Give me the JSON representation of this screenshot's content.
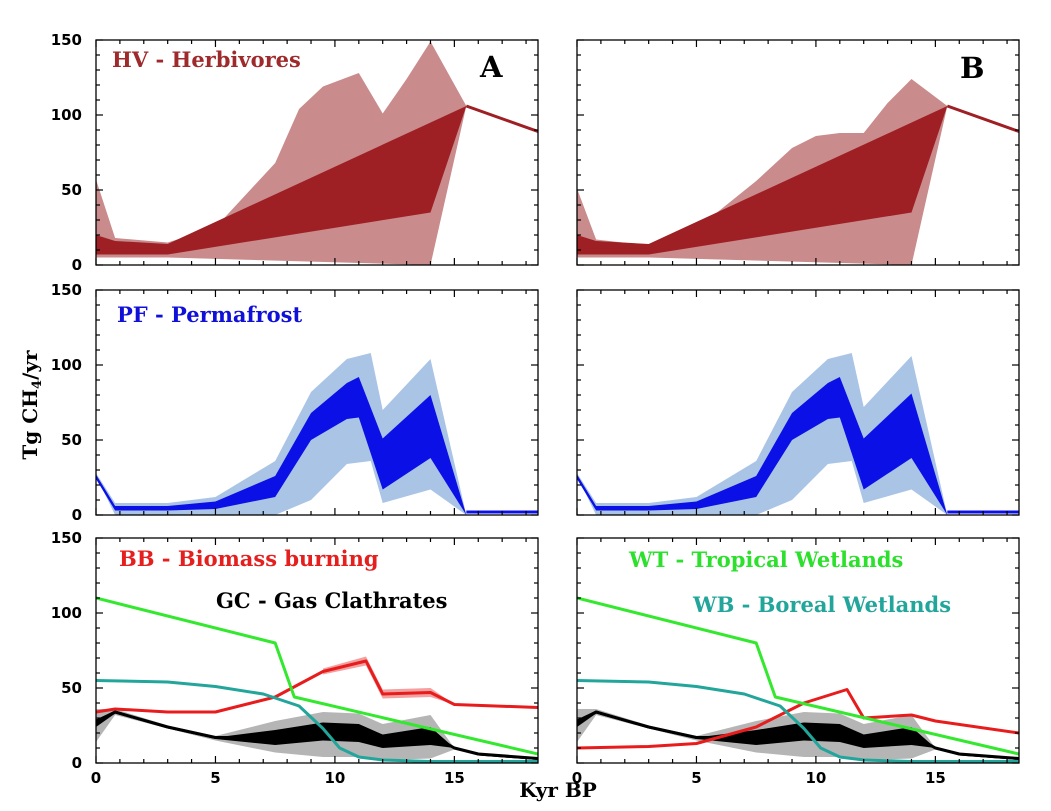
{
  "figure": {
    "ylabel_main": "Tg CH",
    "ylabel_sub": "4",
    "ylabel_end": "/yr",
    "xlabel": "Kyr BP"
  },
  "colors": {
    "hv_dark": "#9e1f24",
    "hv_light": "#c98b8c",
    "pf_dark": "#0a10e6",
    "pf_light": "#aac4e6",
    "bb": "#e81c1c",
    "bb_band": "#f2a0a0",
    "gc": "#000000",
    "gc_band": "#b5b5b5",
    "wt": "#33e82e",
    "wb": "#22a59a",
    "hv_text": "#9e2a2b",
    "pf_text": "#1010d8",
    "bb_text": "#e51e1e",
    "gc_text": "#000000",
    "wt_text": "#2ee02e",
    "wb_text": "#22a59a"
  },
  "chart_data": [
    {
      "id": "hv_A",
      "type": "area",
      "panel_letter": "A",
      "title": "HV - Herbivores",
      "xlim": [
        0,
        18.5
      ],
      "ylim": [
        0,
        150
      ],
      "xticks": [
        "0",
        "5",
        "10",
        "15"
      ],
      "yticks": [
        "0",
        "50",
        "100",
        "150"
      ],
      "series": [
        {
          "name": "outer_upper",
          "x": [
            0,
            0.8,
            3,
            5,
            7.5,
            8.5,
            9.5,
            11,
            12,
            13,
            14,
            15.5
          ],
          "y": [
            57,
            18,
            15,
            25,
            68,
            104,
            119,
            128,
            101,
            124,
            149,
            106
          ]
        },
        {
          "name": "outer_lower",
          "x": [
            0,
            0.8,
            3,
            14,
            15.5
          ],
          "y": [
            5,
            5,
            5,
            0,
            106
          ]
        },
        {
          "name": "inner_upper",
          "x": [
            0,
            0.8,
            3,
            15.5
          ],
          "y": [
            20,
            16,
            14,
            106
          ]
        },
        {
          "name": "inner_lower",
          "x": [
            0,
            0.8,
            3,
            14,
            15.5
          ],
          "y": [
            7,
            7,
            7,
            35,
            106
          ]
        },
        {
          "name": "mean",
          "x": [
            15.5,
            18.5
          ],
          "y": [
            106,
            89
          ]
        }
      ]
    },
    {
      "id": "hv_B",
      "type": "area",
      "panel_letter": "B",
      "xlim": [
        0,
        18.5
      ],
      "ylim": [
        0,
        150
      ],
      "xticks": [
        "0",
        "5",
        "10",
        "15"
      ],
      "yticks": [],
      "series": [
        {
          "name": "outer_upper",
          "x": [
            0,
            0.8,
            3,
            5,
            7.5,
            9,
            10,
            11,
            12,
            13,
            14,
            15.5
          ],
          "y": [
            51,
            17,
            13,
            24,
            56,
            78,
            86,
            88,
            88,
            108,
            124,
            106
          ]
        },
        {
          "name": "outer_lower",
          "x": [
            0,
            0.8,
            3,
            14,
            15.5
          ],
          "y": [
            5,
            5,
            5,
            0,
            106
          ]
        },
        {
          "name": "inner_upper",
          "x": [
            0,
            0.8,
            3,
            15.5
          ],
          "y": [
            20,
            16,
            14,
            106
          ]
        },
        {
          "name": "inner_lower",
          "x": [
            0,
            0.8,
            3,
            14,
            15.5
          ],
          "y": [
            7,
            7,
            7,
            35,
            106
          ]
        },
        {
          "name": "mean",
          "x": [
            15.5,
            18.5
          ],
          "y": [
            106,
            89
          ]
        }
      ]
    },
    {
      "id": "pf_A",
      "type": "area",
      "title": "PF - Permafrost",
      "xlim": [
        0,
        18.5
      ],
      "ylim": [
        0,
        150
      ],
      "xticks": [
        "0",
        "5",
        "10",
        "15"
      ],
      "yticks": [
        "0",
        "50",
        "100",
        "150"
      ],
      "series": [
        {
          "name": "outer_upper",
          "x": [
            0,
            0.8,
            3,
            5,
            7.5,
            9,
            10.5,
            11.5,
            12,
            14,
            15.5
          ],
          "y": [
            28,
            8,
            8,
            12,
            36,
            82,
            104,
            108,
            70,
            104,
            0
          ]
        },
        {
          "name": "outer_lower",
          "x": [
            0,
            0.8,
            3,
            5,
            7.5,
            9,
            10.5,
            11.5,
            12,
            14,
            15.5
          ],
          "y": [
            26,
            0,
            0,
            0,
            0,
            10,
            34,
            36,
            8,
            17,
            0
          ]
        },
        {
          "name": "inner_upper",
          "x": [
            0,
            0.8,
            3,
            5,
            7.5,
            9,
            10.5,
            11,
            12,
            14,
            15.5
          ],
          "y": [
            27,
            6,
            6,
            9,
            26,
            68,
            88,
            92,
            51,
            80,
            0
          ]
        },
        {
          "name": "inner_lower",
          "x": [
            0,
            0.8,
            3,
            5,
            7.5,
            9,
            10.5,
            11,
            12,
            14,
            15.5
          ],
          "y": [
            24,
            3,
            3,
            4,
            12,
            50,
            64,
            65,
            17,
            38,
            0
          ]
        },
        {
          "name": "mean",
          "x": [
            15.5,
            18.5
          ],
          "y": [
            2,
            2
          ]
        }
      ]
    },
    {
      "id": "pf_B",
      "type": "area",
      "xlim": [
        0,
        18.5
      ],
      "ylim": [
        0,
        150
      ],
      "xticks": [
        "0",
        "5",
        "10",
        "15"
      ],
      "yticks": [],
      "series": [
        {
          "name": "outer_upper",
          "x": [
            0,
            0.8,
            3,
            5,
            7.5,
            9,
            10.5,
            11.5,
            12,
            14,
            15.5
          ],
          "y": [
            28,
            8,
            8,
            12,
            36,
            82,
            104,
            108,
            72,
            106,
            0
          ]
        },
        {
          "name": "outer_lower",
          "x": [
            0,
            0.8,
            3,
            5,
            7.5,
            9,
            10.5,
            11.5,
            12,
            14,
            15.5
          ],
          "y": [
            26,
            0,
            0,
            0,
            0,
            10,
            34,
            36,
            8,
            17,
            0
          ]
        },
        {
          "name": "inner_upper",
          "x": [
            0,
            0.8,
            3,
            5,
            7.5,
            9,
            10.5,
            11,
            12,
            14,
            15.5
          ],
          "y": [
            27,
            6,
            6,
            9,
            26,
            68,
            88,
            92,
            51,
            81,
            0
          ]
        },
        {
          "name": "inner_lower",
          "x": [
            0,
            0.8,
            3,
            5,
            7.5,
            9,
            10.5,
            11,
            12,
            14,
            15.5
          ],
          "y": [
            24,
            3,
            3,
            4,
            12,
            50,
            64,
            65,
            17,
            38,
            0
          ]
        },
        {
          "name": "mean",
          "x": [
            15.5,
            18.5
          ],
          "y": [
            2,
            2
          ]
        }
      ]
    },
    {
      "id": "low_A",
      "type": "line",
      "legend": [
        "BB - Biomass burning",
        "GC - Gas Clathrates"
      ],
      "xlim": [
        0,
        18.5
      ],
      "ylim": [
        0,
        150
      ],
      "xticks": [
        "0",
        "5",
        "10",
        "15"
      ],
      "yticks": [
        "0",
        "50",
        "100",
        "150"
      ],
      "series": [
        {
          "name": "WT",
          "x": [
            0,
            7.5,
            8.3,
            18.5
          ],
          "y": [
            110,
            80,
            44,
            6
          ]
        },
        {
          "name": "WB",
          "x": [
            0,
            3,
            5,
            7,
            8.5,
            9.5,
            10.2,
            11,
            12,
            14,
            16,
            18.5
          ],
          "y": [
            55,
            54,
            51,
            46,
            38,
            23,
            10,
            4,
            2,
            1,
            1,
            1
          ]
        },
        {
          "name": "BB",
          "x": [
            0,
            0.8,
            3,
            5,
            7.5,
            9.5,
            11.3,
            12,
            14,
            15,
            18.5
          ],
          "y": [
            34,
            36,
            34,
            34,
            44,
            61,
            68,
            46,
            47,
            39,
            37
          ]
        },
        {
          "name": "BB_band_upper",
          "x": [
            9.5,
            11.3,
            12,
            14,
            15
          ],
          "y": [
            63,
            71,
            49,
            50,
            39
          ]
        },
        {
          "name": "BB_band_lower",
          "x": [
            9.5,
            11.3,
            12,
            14,
            15
          ],
          "y": [
            59,
            65,
            43,
            44,
            39
          ]
        },
        {
          "name": "GC",
          "x": [
            0,
            0.8,
            3,
            5,
            7.5,
            9.5,
            11,
            12,
            14,
            15,
            16,
            18.5
          ],
          "y": [
            27,
            34,
            24,
            17,
            17,
            23,
            22,
            15,
            19,
            10,
            6,
            3
          ]
        },
        {
          "name": "GC_outer_upper",
          "x": [
            0,
            0.8,
            3,
            5,
            7.5,
            9.5,
            11,
            12,
            14,
            15,
            16,
            18.5
          ],
          "y": [
            36,
            36,
            25,
            18,
            28,
            34,
            33,
            26,
            32,
            10,
            6,
            3
          ]
        },
        {
          "name": "GC_outer_lower",
          "x": [
            0,
            0.8,
            3,
            5,
            7.5,
            9.5,
            11,
            12,
            14,
            15,
            16,
            18.5
          ],
          "y": [
            14,
            32,
            23,
            15,
            7,
            4,
            4,
            2,
            3,
            9,
            5,
            2
          ]
        },
        {
          "name": "GC_inner_upper",
          "x": [
            0,
            0.8,
            3,
            5,
            7.5,
            9.5,
            11,
            12,
            14,
            15,
            16,
            18.5
          ],
          "y": [
            29,
            35,
            24,
            17,
            22,
            27,
            26,
            19,
            24,
            10,
            6,
            3
          ]
        },
        {
          "name": "GC_inner_lower",
          "x": [
            0,
            0.8,
            3,
            5,
            7.5,
            9.5,
            11,
            12,
            14,
            15,
            16,
            18.5
          ],
          "y": [
            24,
            33,
            23,
            16,
            12,
            15,
            14,
            10,
            12,
            10,
            5,
            2
          ]
        }
      ]
    },
    {
      "id": "low_B",
      "type": "line",
      "legend": [
        "WT - Tropical Wetlands",
        "WB - Boreal Wetlands"
      ],
      "xlim": [
        0,
        18.5
      ],
      "ylim": [
        0,
        150
      ],
      "xticks": [
        "0",
        "5",
        "10",
        "15"
      ],
      "yticks": [],
      "series": [
        {
          "name": "WT",
          "x": [
            0,
            7.5,
            8.3,
            18.5
          ],
          "y": [
            110,
            80,
            44,
            6
          ]
        },
        {
          "name": "WB",
          "x": [
            0,
            3,
            5,
            7,
            8.5,
            9.5,
            10.2,
            11,
            12,
            14,
            16,
            18.5
          ],
          "y": [
            55,
            54,
            51,
            46,
            38,
            23,
            10,
            4,
            2,
            1,
            1,
            1
          ]
        },
        {
          "name": "BB",
          "x": [
            0,
            3,
            5,
            7.5,
            9.5,
            11.3,
            12,
            14,
            15,
            18.5
          ],
          "y": [
            10,
            11,
            13,
            24,
            40,
            49,
            30,
            32,
            28,
            20
          ]
        },
        {
          "name": "GC",
          "x": [
            0,
            0.8,
            3,
            5,
            7.5,
            9.5,
            11,
            12,
            14,
            15,
            16,
            18.5
          ],
          "y": [
            27,
            34,
            24,
            17,
            17,
            23,
            22,
            15,
            19,
            10,
            6,
            3
          ]
        },
        {
          "name": "GC_outer_upper",
          "x": [
            0,
            0.8,
            3,
            5,
            7.5,
            9.5,
            11,
            12,
            14,
            15,
            16,
            18.5
          ],
          "y": [
            36,
            36,
            25,
            18,
            28,
            34,
            33,
            26,
            32,
            10,
            6,
            3
          ]
        },
        {
          "name": "GC_outer_lower",
          "x": [
            0,
            0.8,
            3,
            5,
            7.5,
            9.5,
            11,
            12,
            14,
            15,
            16,
            18.5
          ],
          "y": [
            14,
            32,
            23,
            15,
            7,
            4,
            4,
            2,
            3,
            9,
            5,
            2
          ]
        },
        {
          "name": "GC_inner_upper",
          "x": [
            0,
            0.8,
            3,
            5,
            7.5,
            9.5,
            11,
            12,
            14,
            15,
            16,
            18.5
          ],
          "y": [
            29,
            35,
            24,
            17,
            22,
            27,
            26,
            19,
            24,
            10,
            6,
            3
          ]
        },
        {
          "name": "GC_inner_lower",
          "x": [
            0,
            0.8,
            3,
            5,
            7.5,
            9.5,
            11,
            12,
            14,
            15,
            16,
            18.5
          ],
          "y": [
            24,
            33,
            23,
            16,
            12,
            15,
            14,
            10,
            12,
            10,
            5,
            2
          ]
        }
      ]
    }
  ]
}
